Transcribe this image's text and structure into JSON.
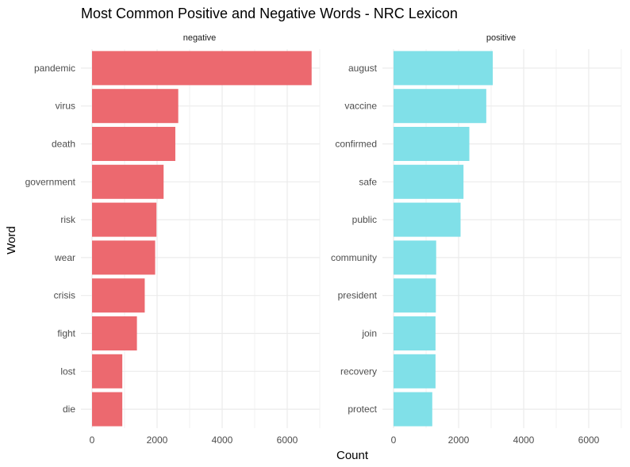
{
  "chart_data": {
    "type": "bar",
    "orientation": "horizontal",
    "title": "Most Common Positive and Negative Words - NRC Lexicon",
    "xlabel": "Count",
    "ylabel": "Word",
    "xlim": [
      0,
      7000
    ],
    "xticks": [
      0,
      2000,
      4000,
      6000
    ],
    "grid": true,
    "panels": [
      {
        "name": "negative",
        "color": "#EC696F",
        "categories": [
          "pandemic",
          "virus",
          "death",
          "government",
          "risk",
          "wear",
          "crisis",
          "fight",
          "lost",
          "die"
        ],
        "values": [
          6750,
          2650,
          2560,
          2200,
          1980,
          1940,
          1620,
          1380,
          930,
          930
        ]
      },
      {
        "name": "positive",
        "color": "#80E0E8",
        "categories": [
          "august",
          "vaccine",
          "confirmed",
          "safe",
          "public",
          "community",
          "president",
          "join",
          "recovery",
          "protect"
        ],
        "values": [
          3050,
          2850,
          2330,
          2150,
          2060,
          1310,
          1300,
          1290,
          1290,
          1190
        ]
      }
    ]
  }
}
